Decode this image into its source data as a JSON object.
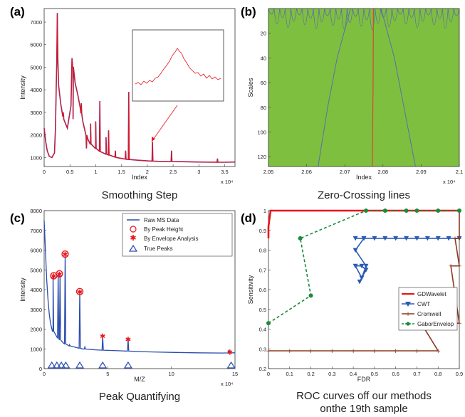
{
  "panels": [
    {
      "letter": "(a)",
      "caption": "Smoothing Step",
      "chart_data": {
        "type": "line",
        "xlabel": "Index",
        "ylabel": "Intensity",
        "x_multiplier": "x 10⁴",
        "xlim": [
          0,
          3.7
        ],
        "ylim": [
          600,
          7600
        ],
        "xticks": [
          0,
          0.5,
          1,
          1.5,
          2,
          2.5,
          3,
          3.5
        ],
        "yticks": [
          1000,
          2000,
          3000,
          4000,
          5000,
          6000,
          7000
        ],
        "series": [
          {
            "color": "#e8141c",
            "points": [
              [
                0,
                2300
              ],
              [
                0.03,
                1700
              ],
              [
                0.06,
                1300
              ],
              [
                0.1,
                1050
              ],
              [
                0.15,
                1000
              ],
              [
                0.2,
                1200
              ],
              [
                0.22,
                2300
              ],
              [
                0.235,
                4200
              ],
              [
                0.245,
                5200
              ],
              [
                0.255,
                7400
              ],
              [
                0.265,
                5400
              ],
              [
                0.28,
                4200
              ],
              [
                0.32,
                3400
              ],
              [
                0.38,
                2700
              ],
              [
                0.45,
                2300
              ],
              [
                0.52,
                3300
              ],
              [
                0.54,
                5400
              ],
              [
                0.56,
                5000
              ],
              [
                0.6,
                4300
              ],
              [
                0.65,
                3800
              ],
              [
                0.7,
                3200
              ],
              [
                0.75,
                2600
              ],
              [
                0.8,
                2100
              ],
              [
                0.85,
                1800
              ],
              [
                0.9,
                1600
              ],
              [
                1.0,
                1400
              ],
              [
                1.1,
                1250
              ],
              [
                1.2,
                1150
              ],
              [
                1.3,
                1080
              ],
              [
                1.4,
                1000
              ],
              [
                1.6,
                920
              ],
              [
                1.8,
                880
              ],
              [
                2.0,
                850
              ],
              [
                2.2,
                830
              ],
              [
                2.5,
                820
              ],
              [
                3.0,
                800
              ],
              [
                3.5,
                790
              ],
              [
                3.7,
                800
              ]
            ]
          }
        ],
        "peaks": [
          [
            0.37,
            3000
          ],
          [
            0.56,
            2700
          ],
          [
            0.72,
            3400
          ],
          [
            0.82,
            1400
          ],
          [
            0.9,
            2500
          ],
          [
            1.0,
            2600
          ],
          [
            1.08,
            3500
          ],
          [
            1.2,
            1900
          ],
          [
            1.25,
            2200
          ],
          [
            1.38,
            1300
          ],
          [
            1.58,
            1300
          ],
          [
            1.64,
            3900
          ],
          [
            2.1,
            1700
          ],
          [
            2.47,
            1300
          ],
          [
            3.36,
            950
          ]
        ],
        "annotation": "inset zoom on peak near 2.1"
      }
    },
    {
      "letter": "(b)",
      "caption": "Zero-Crossing lines",
      "chart_data": {
        "type": "heatmap",
        "xlabel": "Index",
        "ylabel": "Scales",
        "x_multiplier": "x 10⁴",
        "xlim": [
          2.05,
          2.1
        ],
        "ylim": [
          0,
          128
        ],
        "xticks": [
          "2.05",
          "2.06",
          "2.07",
          "2.08",
          "2.09",
          "2.1"
        ],
        "yticks": [
          20,
          40,
          60,
          80,
          100,
          120
        ],
        "background": "#7fbf3f",
        "lines": [
          {
            "color": "#5b6ea8",
            "points": [
              [
                2.0715,
                0
              ],
              [
                2.068,
                40
              ],
              [
                2.0655,
                80
              ],
              [
                2.063,
                128
              ]
            ]
          },
          {
            "color": "#5b6ea8",
            "points": [
              [
                2.0795,
                0
              ],
              [
                2.083,
                40
              ],
              [
                2.0855,
                80
              ],
              [
                2.0885,
                128
              ]
            ]
          },
          {
            "color": "#d44a2a",
            "points": [
              [
                2.0775,
                0
              ],
              [
                2.0774,
                64
              ],
              [
                2.0772,
                128
              ]
            ]
          }
        ]
      }
    },
    {
      "letter": "(c)",
      "caption": "Peak Quantifying",
      "chart_data": {
        "type": "line",
        "xlabel": "M/Z",
        "ylabel": "Intensity",
        "x_multiplier": "x 10⁴",
        "xlim": [
          0,
          15
        ],
        "ylim": [
          0,
          8000
        ],
        "xticks": [
          0,
          5,
          10,
          15
        ],
        "yticks": [
          0,
          1000,
          2000,
          3000,
          4000,
          5000,
          6000,
          7000,
          8000
        ],
        "legend": [
          "Raw MS Data",
          "By Peak Height",
          "By Envelope Analysis",
          "True Peaks"
        ],
        "legend_position": "top-right",
        "series": [
          {
            "name": "Raw MS Data",
            "color": "#2a4cad",
            "points": [
              [
                0,
                7500
              ],
              [
                0.1,
                6000
              ],
              [
                0.2,
                4500
              ],
              [
                0.3,
                3500
              ],
              [
                0.4,
                2800
              ],
              [
                0.5,
                2300
              ],
              [
                0.7,
                1900
              ],
              [
                1.0,
                1600
              ],
              [
                1.5,
                1300
              ],
              [
                2,
                1150
              ],
              [
                3,
                1000
              ],
              [
                4,
                950
              ],
              [
                6,
                900
              ],
              [
                8,
                850
              ],
              [
                10,
                820
              ],
              [
                12,
                800
              ],
              [
                14,
                790
              ],
              [
                15,
                800
              ]
            ]
          }
        ],
        "peaks": [
          [
            0.7,
            4700
          ],
          [
            1.1,
            4800
          ],
          [
            1.25,
            4700
          ],
          [
            1.65,
            5800
          ],
          [
            2.0,
            1200
          ],
          [
            2.8,
            3900
          ],
          [
            3.2,
            1100
          ],
          [
            4.6,
            1650
          ],
          [
            6.6,
            1500
          ],
          [
            14.5,
            900
          ]
        ],
        "by_peak_height": [
          [
            0.75,
            4700
          ],
          [
            1.2,
            4800
          ],
          [
            1.65,
            5800
          ],
          [
            2.8,
            3900
          ]
        ],
        "by_envelope_analysis": [
          [
            0.75,
            4700
          ],
          [
            1.2,
            4800
          ],
          [
            1.65,
            5800
          ],
          [
            2.8,
            3900
          ],
          [
            4.6,
            1650
          ],
          [
            6.6,
            1500
          ],
          [
            14.6,
            850
          ]
        ],
        "true_peaks": [
          0.6,
          1.0,
          1.35,
          1.7,
          2.8,
          4.6,
          6.6,
          14.7
        ]
      }
    },
    {
      "letter": "(d)",
      "caption": "ROC curves off our methods onthe 19th sample",
      "chart_data": {
        "type": "line",
        "xlabel": "FDR",
        "ylabel": "Sensitivity",
        "xlim": [
          0,
          0.9
        ],
        "ylim": [
          0.2,
          1.0
        ],
        "xticks": [
          "0",
          "0.1",
          "0.2",
          "0.3",
          "0.4",
          "0.5",
          "0.6",
          "0.7",
          "0.8",
          "0.9"
        ],
        "yticks": [
          "0.2",
          "0.3",
          "0.4",
          "0.5",
          "0.6",
          "0.7",
          "0.8",
          "0.9",
          "1"
        ],
        "legend_position": "center-right",
        "series": [
          {
            "name": "GDWavelet",
            "color": "#e8141c",
            "marker": "none",
            "points": [
              [
                0.0,
                0.86
              ],
              [
                0.0,
                0.92
              ],
              [
                0.01,
                1.0
              ],
              [
                0.9,
                1.0
              ]
            ]
          },
          {
            "name": "CWT",
            "color": "#2a5ab4",
            "marker": "triangle",
            "points": [
              [
                0.41,
                0.86
              ],
              [
                0.45,
                0.86
              ],
              [
                0.5,
                0.86
              ],
              [
                0.55,
                0.86
              ],
              [
                0.6,
                0.86
              ],
              [
                0.65,
                0.86
              ],
              [
                0.7,
                0.86
              ],
              [
                0.75,
                0.86
              ],
              [
                0.8,
                0.86
              ],
              [
                0.85,
                0.86
              ],
              [
                0.9,
                0.86
              ],
              [
                0.45,
                0.86
              ],
              [
                0.41,
                0.8
              ],
              [
                0.46,
                0.72
              ],
              [
                0.44,
                0.66
              ],
              [
                0.41,
                0.72
              ],
              [
                0.44,
                0.72
              ],
              [
                0.46,
                0.7
              ],
              [
                0.43,
                0.64
              ]
            ]
          },
          {
            "name": "Cromwell",
            "color": "#8b3a1e",
            "marker": "plus",
            "points": [
              [
                0.0,
                0.29
              ],
              [
                0.1,
                0.29
              ],
              [
                0.2,
                0.29
              ],
              [
                0.3,
                0.29
              ],
              [
                0.4,
                0.29
              ],
              [
                0.5,
                0.29
              ],
              [
                0.6,
                0.29
              ],
              [
                0.7,
                0.29
              ],
              [
                0.8,
                0.29
              ],
              [
                0.72,
                0.43
              ],
              [
                0.8,
                0.43
              ],
              [
                0.85,
                0.43
              ],
              [
                0.9,
                0.43
              ],
              [
                0.86,
                0.72
              ],
              [
                0.9,
                0.72
              ],
              [
                0.88,
                0.86
              ],
              [
                0.9,
                0.86
              ],
              [
                0.9,
                1.0
              ]
            ]
          },
          {
            "name": "GaborEnvelop",
            "color": "#1a8a3a",
            "marker": "circle",
            "points": [
              [
                0.0,
                0.43
              ],
              [
                0.2,
                0.57
              ],
              [
                0.15,
                0.86
              ],
              [
                0.46,
                1.0
              ],
              [
                0.55,
                1.0
              ],
              [
                0.65,
                1.0
              ],
              [
                0.7,
                1.0
              ],
              [
                0.8,
                1.0
              ],
              [
                0.9,
                1.0
              ]
            ]
          }
        ]
      }
    }
  ]
}
